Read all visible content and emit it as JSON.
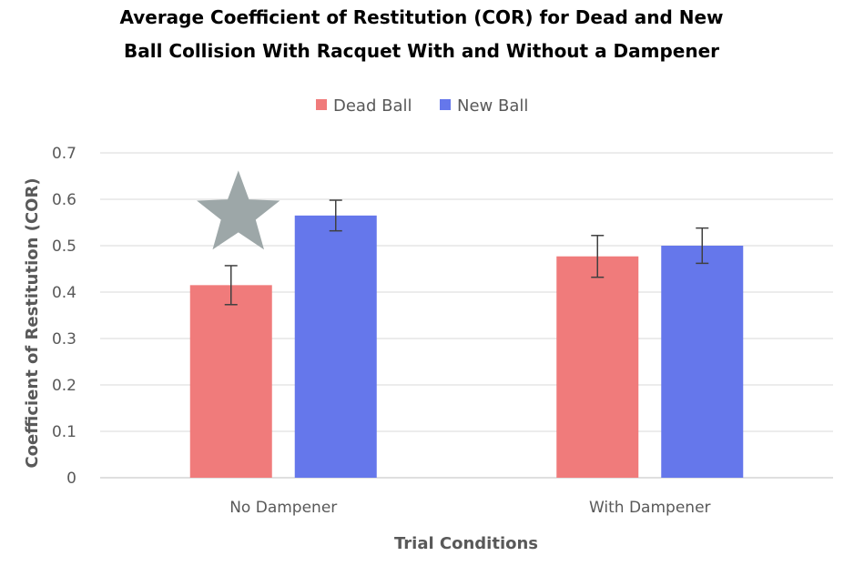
{
  "chart_data": {
    "type": "bar",
    "title_lines": [
      "Average Coefficient of Restitution (COR) for Dead and New",
      "Ball Collision With Racquet With and Without a Dampener"
    ],
    "xlabel": "Trial Conditions",
    "ylabel": "Coefficient of Restitution (COR)",
    "categories": [
      "No Dampener",
      "With Dampener"
    ],
    "ylim": [
      0,
      0.7
    ],
    "yticks": [
      0,
      0.1,
      0.2,
      0.3,
      0.4,
      0.5,
      0.6,
      0.7
    ],
    "ytick_labels": [
      "0",
      "0.1",
      "0.2",
      "0.3",
      "0.4",
      "0.5",
      "0.6",
      "0.7"
    ],
    "grid": true,
    "legend_position": "top-center",
    "series": [
      {
        "name": "Dead Ball",
        "color": "#f07b7b",
        "values": [
          0.415,
          0.477
        ],
        "errors": [
          0.042,
          0.045
        ]
      },
      {
        "name": "New Ball",
        "color": "#6577eb",
        "values": [
          0.565,
          0.5
        ],
        "errors": [
          0.033,
          0.038
        ]
      }
    ],
    "annotations": [
      {
        "type": "star-marker",
        "category": "No Dampener",
        "series": "Dead Ball",
        "color": "#9da7a8"
      }
    ]
  }
}
